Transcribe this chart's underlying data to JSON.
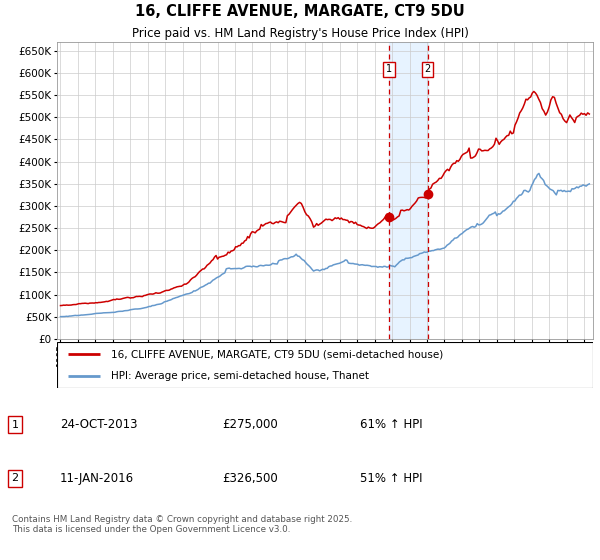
{
  "title": "16, CLIFFE AVENUE, MARGATE, CT9 5DU",
  "subtitle": "Price paid vs. HM Land Registry's House Price Index (HPI)",
  "legend_line1": "16, CLIFFE AVENUE, MARGATE, CT9 5DU (semi-detached house)",
  "legend_line2": "HPI: Average price, semi-detached house, Thanet",
  "event1_date": "24-OCT-2013",
  "event1_price": 275000,
  "event1_price_str": "£275,000",
  "event1_hpi": "61% ↑ HPI",
  "event1_x": 2013.81,
  "event1_y": 275000,
  "event2_date": "11-JAN-2016",
  "event2_price": 326500,
  "event2_price_str": "£326,500",
  "event2_hpi": "51% ↑ HPI",
  "event2_x": 2016.03,
  "event2_y": 326500,
  "red_color": "#cc0000",
  "blue_color": "#6699cc",
  "shading_color": "#ddeeff",
  "grid_color": "#cccccc",
  "bg_color": "#ffffff",
  "yticks": [
    0,
    50000,
    100000,
    150000,
    200000,
    250000,
    300000,
    350000,
    400000,
    450000,
    500000,
    550000,
    600000,
    650000
  ],
  "xlim": [
    1994.8,
    2025.5
  ],
  "ylim": [
    0,
    670000
  ],
  "footnote": "Contains HM Land Registry data © Crown copyright and database right 2025.\nThis data is licensed under the Open Government Licence v3.0."
}
